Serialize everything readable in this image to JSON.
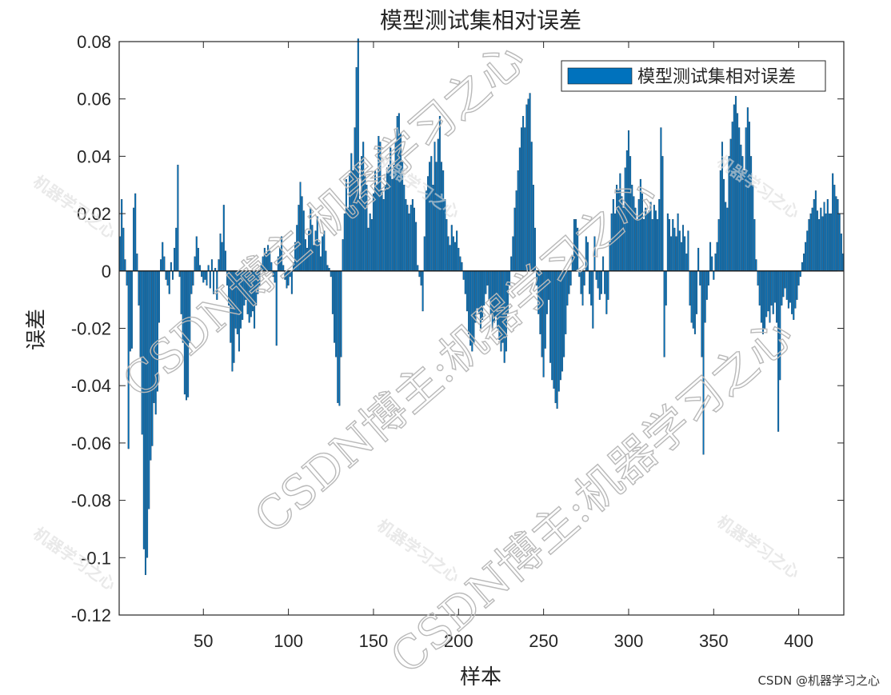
{
  "chart_data": {
    "type": "bar",
    "title": "模型测试集相对误差",
    "xlabel": "样本",
    "ylabel": "误差",
    "xlim": [
      1,
      426
    ],
    "ylim": [
      -0.12,
      0.08
    ],
    "xticks": [
      50,
      100,
      150,
      200,
      250,
      300,
      350,
      400
    ],
    "xtick_labels": [
      "50",
      "100",
      "150",
      "200",
      "250",
      "300",
      "350",
      "400"
    ],
    "yticks": [
      0.08,
      0.06,
      0.04,
      0.02,
      0,
      -0.02,
      -0.04,
      -0.06,
      -0.08,
      -0.1,
      -0.12
    ],
    "ytick_labels": [
      "0.08",
      "0.06",
      "0.04",
      "0.02",
      "0",
      "-0.02",
      "-0.04",
      "-0.06",
      "-0.08",
      "-0.1",
      "-0.12"
    ],
    "legend": {
      "label": "模型测试集相对误差",
      "position": "top-right"
    },
    "series": [
      {
        "name": "模型测试集相对误差",
        "color": "#0072BD"
      }
    ],
    "x": [
      1,
      426
    ],
    "envelope": [
      [
        1,
        0.012
      ],
      [
        2,
        0.025
      ],
      [
        3,
        0.015
      ],
      [
        4,
        0.004
      ],
      [
        5,
        -0.005
      ],
      [
        6,
        -0.062
      ],
      [
        7,
        -0.028
      ],
      [
        8,
        -0.027
      ],
      [
        9,
        0.022
      ],
      [
        10,
        0.027
      ],
      [
        11,
        0.006
      ],
      [
        12,
        -0.012
      ],
      [
        13,
        -0.03
      ],
      [
        14,
        -0.057
      ],
      [
        15,
        -0.097
      ],
      [
        16,
        -0.106
      ],
      [
        17,
        -0.1
      ],
      [
        18,
        -0.083
      ],
      [
        19,
        -0.066
      ],
      [
        20,
        -0.061
      ],
      [
        21,
        -0.046
      ],
      [
        22,
        -0.05
      ],
      [
        23,
        -0.042
      ],
      [
        24,
        -0.018
      ],
      [
        25,
        0.004
      ],
      [
        26,
        0.01
      ],
      [
        27,
        0.005
      ],
      [
        28,
        -0.003
      ],
      [
        29,
        -0.005
      ],
      [
        30,
        -0.008
      ],
      [
        31,
        0.003
      ],
      [
        32,
        -0.003
      ],
      [
        33,
        0.008
      ],
      [
        34,
        0.015
      ],
      [
        35,
        0.037
      ],
      [
        36,
        -0.002
      ],
      [
        37,
        -0.015
      ],
      [
        38,
        -0.025
      ],
      [
        39,
        -0.043
      ],
      [
        40,
        -0.045
      ],
      [
        41,
        -0.044
      ],
      [
        42,
        -0.025
      ],
      [
        43,
        -0.008
      ],
      [
        44,
        -0.005
      ],
      [
        45,
        0.005
      ],
      [
        46,
        0.012
      ],
      [
        47,
        0.008
      ],
      [
        48,
        0.002
      ],
      [
        49,
        -0.002
      ],
      [
        50,
        -0.004
      ],
      [
        51,
        -0.003
      ],
      [
        52,
        -0.005
      ],
      [
        53,
        0.002
      ],
      [
        54,
        -0.006
      ],
      [
        55,
        0.004
      ],
      [
        56,
        -0.008
      ],
      [
        57,
        0.001
      ],
      [
        58,
        -0.01
      ],
      [
        59,
        0.004
      ],
      [
        60,
        0.013
      ],
      [
        61,
        0.01
      ],
      [
        62,
        0.023
      ],
      [
        63,
        0.007
      ],
      [
        64,
        -0.005
      ],
      [
        65,
        -0.012
      ],
      [
        66,
        -0.025
      ],
      [
        67,
        -0.035
      ],
      [
        68,
        -0.032
      ],
      [
        69,
        -0.02
      ],
      [
        70,
        -0.022
      ],
      [
        71,
        -0.028
      ],
      [
        72,
        -0.02
      ],
      [
        73,
        -0.017
      ],
      [
        74,
        -0.012
      ],
      [
        75,
        -0.01
      ],
      [
        76,
        -0.015
      ],
      [
        77,
        -0.018
      ],
      [
        78,
        -0.016
      ],
      [
        79,
        -0.014
      ],
      [
        80,
        -0.02
      ],
      [
        81,
        -0.012
      ],
      [
        82,
        -0.008
      ],
      [
        83,
        -0.005
      ],
      [
        84,
        0.002
      ],
      [
        85,
        0.005
      ],
      [
        86,
        0.008
      ],
      [
        87,
        0.006
      ],
      [
        88,
        0.009
      ],
      [
        89,
        0.007
      ],
      [
        90,
        0.003
      ],
      [
        91,
        -0.002
      ],
      [
        92,
        -0.004
      ],
      [
        93,
        -0.026
      ],
      [
        94,
        0.005
      ],
      [
        95,
        0.008
      ],
      [
        96,
        0.012
      ],
      [
        97,
        0.002
      ],
      [
        98,
        -0.003
      ],
      [
        99,
        -0.006
      ],
      [
        100,
        -0.005
      ],
      [
        101,
        -0.002
      ],
      [
        102,
        -0.008
      ],
      [
        103,
        0.003
      ],
      [
        104,
        0.01
      ],
      [
        105,
        0.016
      ],
      [
        106,
        0.023
      ],
      [
        107,
        0.031
      ],
      [
        108,
        0.026
      ],
      [
        109,
        0.021
      ],
      [
        110,
        0.011
      ],
      [
        111,
        0.008
      ],
      [
        112,
        0.014
      ],
      [
        113,
        0.022
      ],
      [
        114,
        0.016
      ],
      [
        115,
        0.009
      ],
      [
        116,
        0.014
      ],
      [
        117,
        0.019
      ],
      [
        118,
        0.01
      ],
      [
        119,
        0.005
      ],
      [
        120,
        0.012
      ],
      [
        121,
        0.014
      ],
      [
        122,
        0.007
      ],
      [
        123,
        0.002
      ],
      [
        124,
        0.001
      ],
      [
        125,
        -0.002
      ],
      [
        126,
        -0.015
      ],
      [
        127,
        -0.025
      ],
      [
        128,
        -0.03
      ],
      [
        129,
        -0.046
      ],
      [
        130,
        -0.047
      ],
      [
        131,
        -0.03
      ],
      [
        132,
        0.011
      ],
      [
        133,
        0.02
      ],
      [
        134,
        0.032
      ],
      [
        135,
        0.022
      ],
      [
        136,
        0.034
      ],
      [
        137,
        0.041
      ],
      [
        138,
        0.035
      ],
      [
        139,
        0.05
      ],
      [
        140,
        0.071
      ],
      [
        141,
        0.081
      ],
      [
        142,
        0.025
      ],
      [
        143,
        0.04
      ],
      [
        144,
        0.045
      ],
      [
        145,
        0.033
      ],
      [
        146,
        0.03
      ],
      [
        147,
        0.015
      ],
      [
        148,
        0.02
      ],
      [
        149,
        0.018
      ],
      [
        150,
        0.027
      ],
      [
        151,
        0.035
      ],
      [
        152,
        0.03
      ],
      [
        153,
        0.047
      ],
      [
        154,
        0.045
      ],
      [
        155,
        0.028
      ],
      [
        156,
        0.025
      ],
      [
        157,
        0.03
      ],
      [
        158,
        0.036
      ],
      [
        159,
        0.037
      ],
      [
        160,
        0.043
      ],
      [
        161,
        0.032
      ],
      [
        162,
        0.037
      ],
      [
        163,
        0.045
      ],
      [
        164,
        0.054
      ],
      [
        165,
        0.055
      ],
      [
        166,
        0.048
      ],
      [
        167,
        0.038
      ],
      [
        168,
        0.03
      ],
      [
        169,
        0.025
      ],
      [
        170,
        0.023
      ],
      [
        171,
        0.02
      ],
      [
        172,
        0.023
      ],
      [
        173,
        0.025
      ],
      [
        174,
        0.022
      ],
      [
        175,
        0.017
      ],
      [
        176,
        0.002
      ],
      [
        177,
        -0.002
      ],
      [
        178,
        -0.005
      ],
      [
        179,
        -0.014
      ],
      [
        180,
        0.012
      ],
      [
        181,
        0.028
      ],
      [
        182,
        0.033
      ],
      [
        183,
        0.038
      ],
      [
        184,
        0.04
      ],
      [
        185,
        0.03
      ],
      [
        186,
        0.045
      ],
      [
        187,
        0.038
      ],
      [
        188,
        0.046
      ],
      [
        189,
        0.054
      ],
      [
        190,
        0.038
      ],
      [
        191,
        0.035
      ],
      [
        192,
        0.025
      ],
      [
        193,
        0.018
      ],
      [
        194,
        0.012
      ],
      [
        195,
        0.009
      ],
      [
        196,
        0.016
      ],
      [
        197,
        0.012
      ],
      [
        198,
        0.01
      ],
      [
        199,
        0.014
      ],
      [
        200,
        0.008
      ],
      [
        201,
        0.005
      ],
      [
        202,
        0.003
      ],
      [
        203,
        -0.003
      ],
      [
        204,
        -0.008
      ],
      [
        205,
        -0.014
      ],
      [
        206,
        -0.022
      ],
      [
        207,
        -0.026
      ],
      [
        208,
        -0.028
      ],
      [
        209,
        -0.025
      ],
      [
        210,
        -0.018
      ],
      [
        211,
        -0.013
      ],
      [
        212,
        -0.015
      ],
      [
        213,
        -0.02
      ],
      [
        214,
        -0.017
      ],
      [
        215,
        -0.012
      ],
      [
        216,
        -0.008
      ],
      [
        217,
        -0.005
      ],
      [
        218,
        -0.01
      ],
      [
        219,
        -0.015
      ],
      [
        220,
        -0.02
      ],
      [
        221,
        -0.018
      ],
      [
        222,
        -0.016
      ],
      [
        223,
        -0.02
      ],
      [
        224,
        -0.024
      ],
      [
        225,
        -0.028
      ],
      [
        226,
        -0.025
      ],
      [
        227,
        -0.032
      ],
      [
        228,
        -0.028
      ],
      [
        229,
        -0.015
      ],
      [
        230,
        -0.005
      ],
      [
        231,
        0.005
      ],
      [
        232,
        0.012
      ],
      [
        233,
        0.022
      ],
      [
        234,
        0.028
      ],
      [
        235,
        0.035
      ],
      [
        236,
        0.043
      ],
      [
        237,
        0.05
      ],
      [
        238,
        0.054
      ],
      [
        239,
        0.05
      ],
      [
        240,
        0.058
      ],
      [
        241,
        0.06
      ],
      [
        242,
        0.062
      ],
      [
        243,
        0.045
      ],
      [
        244,
        0.03
      ],
      [
        245,
        0.015
      ],
      [
        246,
        -0.005
      ],
      [
        247,
        -0.015
      ],
      [
        248,
        -0.022
      ],
      [
        249,
        -0.03
      ],
      [
        250,
        -0.037
      ],
      [
        251,
        -0.027
      ],
      [
        252,
        -0.015
      ],
      [
        253,
        -0.01
      ],
      [
        254,
        -0.032
      ],
      [
        255,
        -0.038
      ],
      [
        256,
        -0.041
      ],
      [
        257,
        -0.046
      ],
      [
        258,
        -0.048
      ],
      [
        259,
        -0.042
      ],
      [
        260,
        -0.038
      ],
      [
        261,
        -0.035
      ],
      [
        262,
        -0.03
      ],
      [
        263,
        -0.022
      ],
      [
        264,
        -0.012
      ],
      [
        265,
        -0.008
      ],
      [
        266,
        -0.005
      ],
      [
        267,
        0.005
      ],
      [
        268,
        0.018
      ],
      [
        269,
        0.018
      ],
      [
        270,
        0.015
      ],
      [
        271,
        -0.002
      ],
      [
        272,
        -0.008
      ],
      [
        273,
        -0.012
      ],
      [
        274,
        -0.005
      ],
      [
        275,
        0.012
      ],
      [
        276,
        0.01
      ],
      [
        277,
        -0.008
      ],
      [
        278,
        -0.012
      ],
      [
        279,
        -0.02
      ],
      [
        280,
        0.012
      ],
      [
        281,
        -0.003
      ],
      [
        282,
        -0.006
      ],
      [
        283,
        -0.01
      ],
      [
        284,
        -0.008
      ],
      [
        285,
        0.005
      ],
      [
        286,
        -0.008
      ],
      [
        287,
        -0.015
      ],
      [
        288,
        -0.01
      ],
      [
        289,
        0.01
      ],
      [
        290,
        0.02
      ],
      [
        291,
        0.025
      ],
      [
        292,
        0.02
      ],
      [
        293,
        0.03
      ],
      [
        294,
        0.028
      ],
      [
        295,
        0.034
      ],
      [
        296,
        0.026
      ],
      [
        297,
        0.022
      ],
      [
        298,
        0.036
      ],
      [
        299,
        0.042
      ],
      [
        300,
        0.049
      ],
      [
        301,
        0.04
      ],
      [
        302,
        0.03
      ],
      [
        303,
        0.026
      ],
      [
        304,
        0.022
      ],
      [
        305,
        0.018
      ],
      [
        306,
        0.025
      ],
      [
        307,
        0.032
      ],
      [
        308,
        0.027
      ],
      [
        309,
        0.018
      ],
      [
        310,
        0.022
      ],
      [
        311,
        0.02
      ],
      [
        312,
        0.021
      ],
      [
        313,
        0.024
      ],
      [
        314,
        0.018
      ],
      [
        315,
        0.023
      ],
      [
        316,
        0.021
      ],
      [
        317,
        0.018
      ],
      [
        318,
        0.025
      ],
      [
        319,
        0.05
      ],
      [
        320,
        0.04
      ],
      [
        321,
        -0.03
      ],
      [
        322,
        -0.012
      ],
      [
        323,
        0.02
      ],
      [
        324,
        0.018
      ],
      [
        325,
        0.012
      ],
      [
        326,
        0.018
      ],
      [
        327,
        0.015
      ],
      [
        328,
        0.012
      ],
      [
        329,
        0.02
      ],
      [
        330,
        0.014
      ],
      [
        331,
        0.01
      ],
      [
        332,
        0.016
      ],
      [
        333,
        0.012
      ],
      [
        334,
        0.006
      ],
      [
        335,
        0.014
      ],
      [
        336,
        -0.012
      ],
      [
        337,
        -0.018
      ],
      [
        338,
        -0.02
      ],
      [
        339,
        -0.022
      ],
      [
        340,
        -0.015
      ],
      [
        341,
        0.008
      ],
      [
        342,
        -0.005
      ],
      [
        343,
        -0.03
      ],
      [
        344,
        -0.064
      ],
      [
        345,
        -0.018
      ],
      [
        346,
        -0.01
      ],
      [
        347,
        -0.005
      ],
      [
        348,
        0.01
      ],
      [
        349,
        0.005
      ],
      [
        350,
        -0.003
      ],
      [
        351,
        0.006
      ],
      [
        352,
        0.01
      ],
      [
        353,
        0.018
      ],
      [
        354,
        0.035
      ],
      [
        355,
        0.045
      ],
      [
        356,
        0.032
      ],
      [
        357,
        0.024
      ],
      [
        358,
        0.022
      ],
      [
        359,
        0.04
      ],
      [
        360,
        0.046
      ],
      [
        361,
        0.052
      ],
      [
        362,
        0.058
      ],
      [
        363,
        0.061
      ],
      [
        364,
        0.055
      ],
      [
        365,
        0.05
      ],
      [
        366,
        0.044
      ],
      [
        367,
        0.04
      ],
      [
        368,
        0.035
      ],
      [
        369,
        0.05
      ],
      [
        370,
        0.057
      ],
      [
        371,
        0.052
      ],
      [
        372,
        0.04
      ],
      [
        373,
        0.03
      ],
      [
        374,
        0.018
      ],
      [
        375,
        0.004
      ],
      [
        376,
        -0.005
      ],
      [
        377,
        -0.012
      ],
      [
        378,
        -0.018
      ],
      [
        379,
        -0.022
      ],
      [
        380,
        -0.02
      ],
      [
        381,
        -0.016
      ],
      [
        382,
        -0.014
      ],
      [
        383,
        -0.018
      ],
      [
        384,
        -0.012
      ],
      [
        385,
        -0.015
      ],
      [
        386,
        -0.011
      ],
      [
        387,
        -0.018
      ],
      [
        388,
        -0.056
      ],
      [
        389,
        -0.038
      ],
      [
        390,
        -0.012
      ],
      [
        391,
        -0.009
      ],
      [
        392,
        -0.006
      ],
      [
        393,
        -0.01
      ],
      [
        394,
        -0.013
      ],
      [
        395,
        -0.011
      ],
      [
        396,
        -0.015
      ],
      [
        397,
        -0.017
      ],
      [
        398,
        -0.013
      ],
      [
        399,
        -0.01
      ],
      [
        400,
        -0.005
      ],
      [
        401,
        -0.002
      ],
      [
        402,
        0.003
      ],
      [
        403,
        0.006
      ],
      [
        404,
        0.01
      ],
      [
        405,
        0.014
      ],
      [
        406,
        0.018
      ],
      [
        407,
        0.02
      ],
      [
        408,
        0.022
      ],
      [
        409,
        0.025
      ],
      [
        410,
        0.028
      ],
      [
        411,
        0.021
      ],
      [
        412,
        0.018
      ],
      [
        413,
        0.022
      ],
      [
        414,
        0.019
      ],
      [
        415,
        0.024
      ],
      [
        416,
        0.02
      ],
      [
        417,
        0.025
      ],
      [
        418,
        0.02
      ],
      [
        419,
        0.02
      ],
      [
        420,
        0.034
      ],
      [
        421,
        0.03
      ],
      [
        422,
        0.026
      ],
      [
        423,
        0.025
      ],
      [
        424,
        0.02
      ],
      [
        425,
        0.013
      ],
      [
        426,
        0.006
      ]
    ]
  },
  "watermark": {
    "big_text": "CSDN博主:机器学习之心",
    "small_text": "机器学习之心",
    "credit": "CSDN @机器学习之心"
  }
}
